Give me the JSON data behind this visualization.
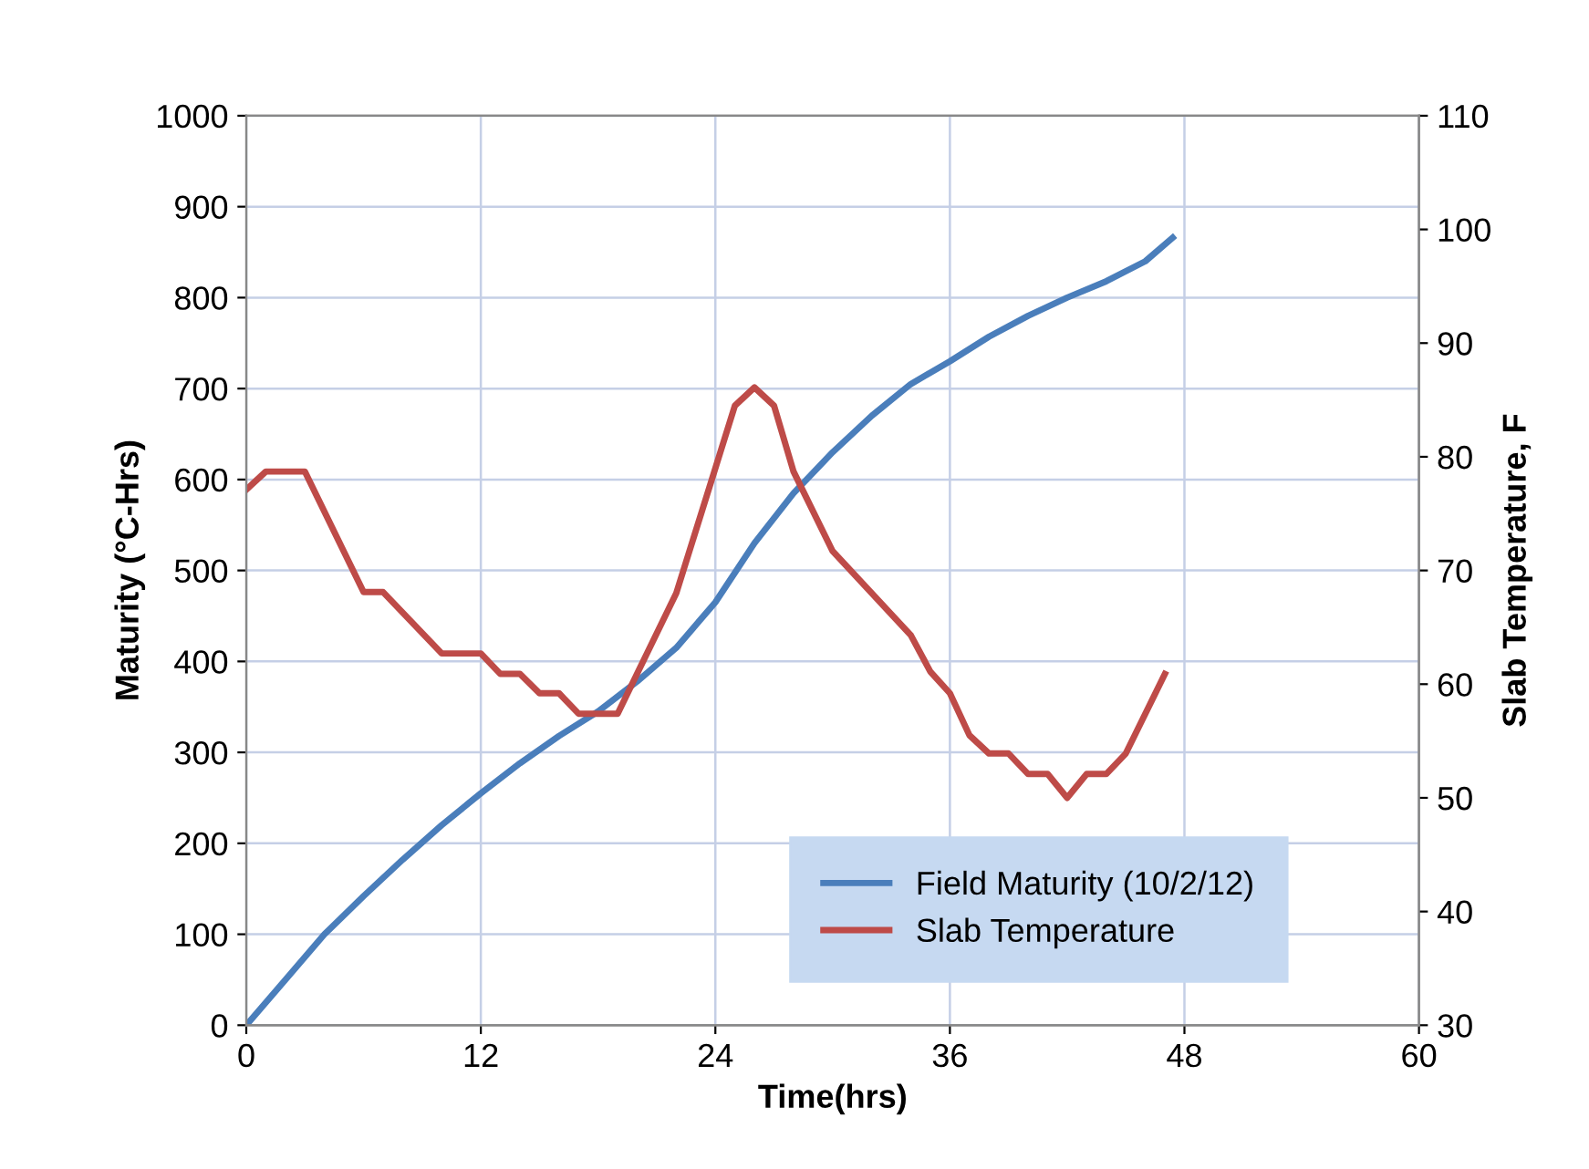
{
  "chart_data": {
    "type": "line",
    "xlabel": "Time(hrs)",
    "ylabel": "Maturity (°C-Hrs)",
    "y2label": "Slab Temperature, F",
    "xlim": [
      0,
      60
    ],
    "xticks": [
      0,
      12,
      24,
      36,
      48,
      60
    ],
    "ylim": [
      0,
      1000
    ],
    "yticks": [
      0,
      100,
      200,
      300,
      400,
      500,
      600,
      700,
      800,
      900,
      1000
    ],
    "y2lim": [
      30,
      110
    ],
    "y2ticks": [
      30,
      40,
      50,
      60,
      70,
      80,
      90,
      100,
      110
    ],
    "grid": true,
    "legend": "bottom right",
    "marker": "none",
    "line_style": "solid",
    "series": [
      {
        "name": "Field Maturity (10/2/12)",
        "color": "#4a7ebb",
        "x": [
          0,
          2,
          4,
          6,
          8,
          10,
          12,
          14,
          16,
          18,
          20,
          22,
          24,
          26,
          28,
          30,
          32,
          34,
          36,
          38,
          40,
          42,
          44,
          46,
          47.4
        ],
        "values": [
          0,
          50,
          100,
          142,
          182,
          220,
          255,
          288,
          318,
          345,
          378,
          415,
          465,
          530,
          585,
          630,
          670,
          705,
          730,
          757,
          780,
          800,
          818,
          840,
          866
        ]
      },
      {
        "name": "Slab Temperature",
        "color": "#be4b48",
        "axis": "y2",
        "x": [
          0,
          1,
          3,
          6,
          7,
          10,
          12,
          13,
          14,
          15,
          16,
          17,
          19,
          22,
          25,
          26,
          27,
          28,
          30,
          34,
          35,
          36,
          37,
          38,
          39,
          40,
          41,
          42,
          43,
          44,
          45,
          47
        ],
        "values": [
          77.1,
          78.7,
          78.7,
          68.1,
          68.1,
          62.7,
          62.7,
          60.9,
          60.9,
          59.2,
          59.2,
          57.4,
          57.4,
          68,
          84.5,
          86.1,
          84.5,
          78.7,
          71.7,
          64.3,
          61.1,
          59.2,
          55.5,
          53.9,
          53.9,
          52.1,
          52.1,
          50,
          52.1,
          52.1,
          53.9,
          60.9
        ]
      }
    ]
  }
}
